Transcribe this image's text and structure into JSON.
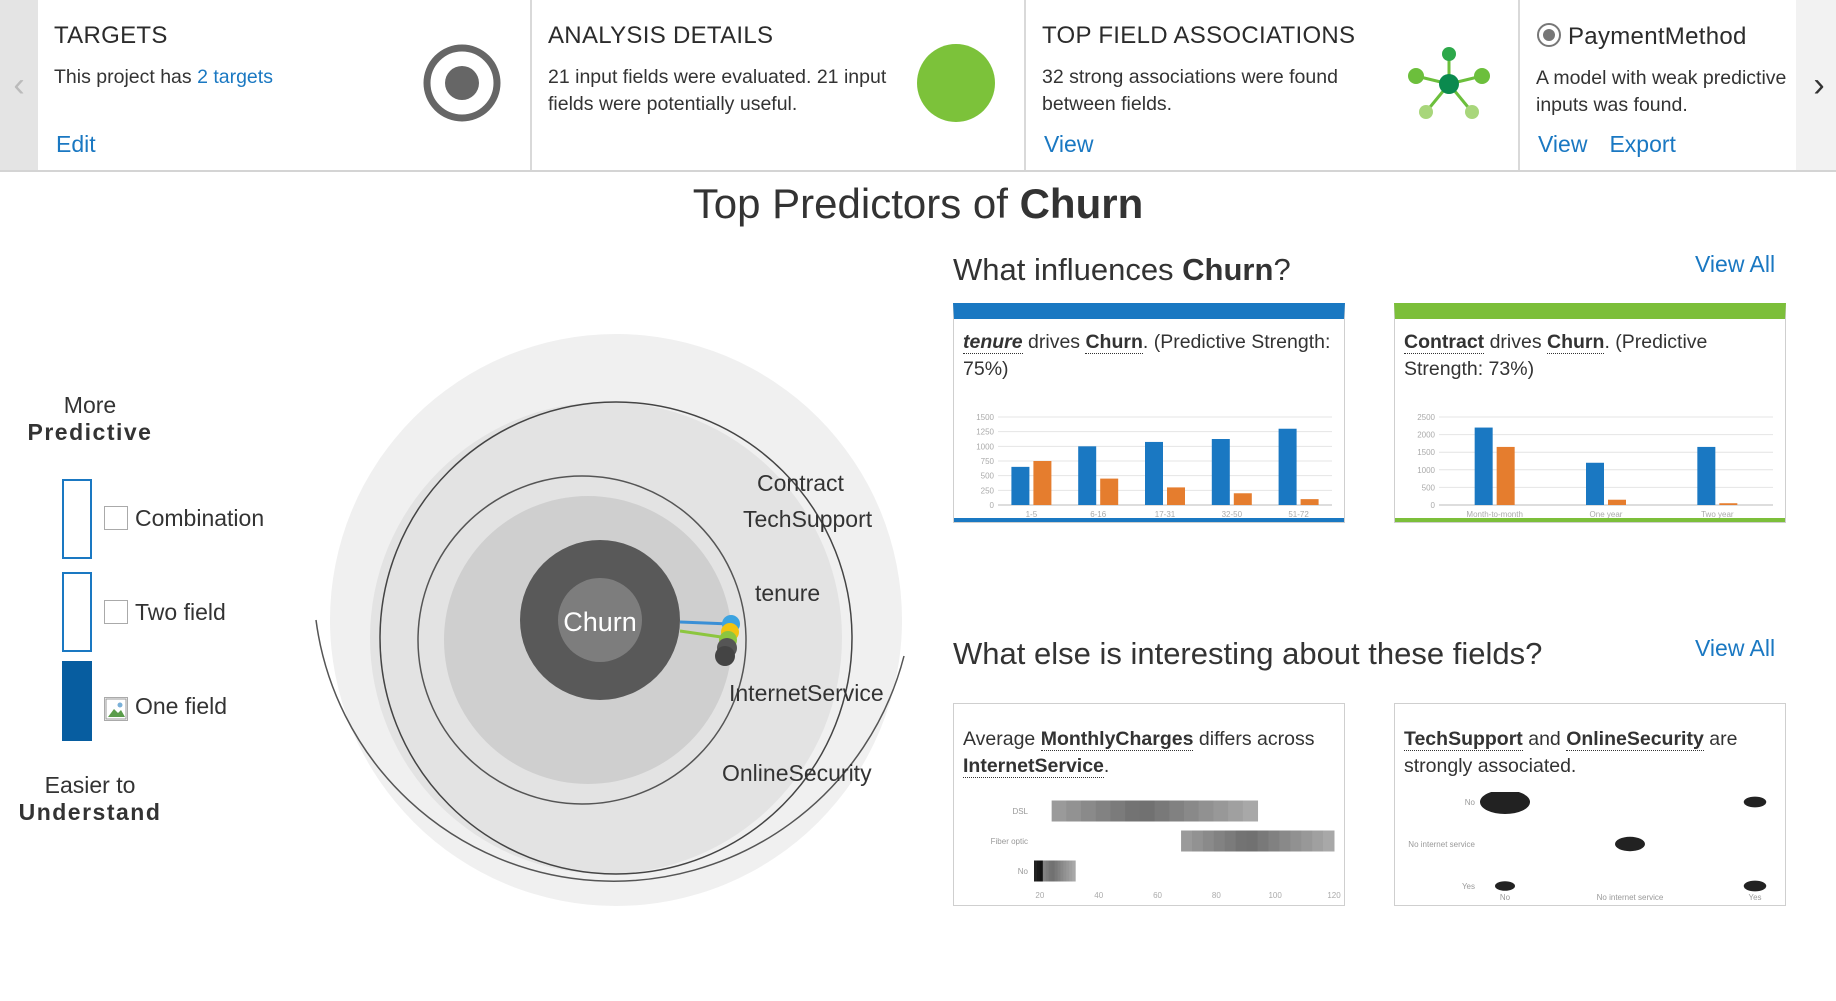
{
  "cards": {
    "targets": {
      "title": "TARGETS",
      "text_prefix": "This project has ",
      "text_link": "2 targets",
      "edit_label": "Edit"
    },
    "analysis": {
      "title": "ANALYSIS DETAILS",
      "text": "21 input fields were evaluated. 21 input fields were potentially useful."
    },
    "associations": {
      "title": "TOP FIELD ASSOCIATIONS",
      "text": "32 strong associations were found between fields.",
      "view_label": "View"
    },
    "payment": {
      "title": "PaymentMethod",
      "text": "A model with weak predictive inputs was found.",
      "view_label": "View",
      "export_label": "Export"
    }
  },
  "main_title": {
    "prefix": "Top Predictors of ",
    "target": "Churn"
  },
  "legend": {
    "top_line1": "More",
    "top_line2": "Predictive",
    "items": [
      {
        "label": "Combination"
      },
      {
        "label": "Two field"
      },
      {
        "label": "One field"
      }
    ],
    "bottom_line1": "Easier to",
    "bottom_line2": "Understand"
  },
  "radial": {
    "center_label": "Churn",
    "labels": [
      "Contract",
      "TechSupport",
      "tenure",
      "InternetService",
      "OnlineSecurity"
    ]
  },
  "influences": {
    "title_prefix": "What influences ",
    "title_target": "Churn",
    "title_suffix": "?",
    "view_all": "View All",
    "panel1": {
      "field": "tenure",
      "mid": " drives ",
      "target": "Churn",
      "rest": ". (Predictive Strength: 75%)",
      "accent": "#1a78c2"
    },
    "panel2": {
      "field": "Contract",
      "mid": " drives ",
      "target": "Churn",
      "rest": ". (Predictive Strength: 73%)",
      "accent": "#7cbf3a"
    }
  },
  "interesting": {
    "title": "What else is interesting about these fields?",
    "view_all": "View All",
    "panel1": {
      "prefix": "Average ",
      "field1": "MonthlyCharges",
      "mid": " differs across ",
      "field2": "InternetService",
      "suffix": "."
    },
    "panel2": {
      "field1": "TechSupport",
      "mid": " and ",
      "field2": "OnlineSecurity",
      "suffix": " are strongly associated."
    }
  },
  "chart_data": [
    {
      "type": "bar",
      "categories": [
        "1-5",
        "6-16",
        "17-31",
        "32-50",
        "51-72"
      ],
      "series": [
        {
          "values": [
            650,
            1000,
            1075,
            1125,
            1300
          ],
          "color": "#1a78c2"
        },
        {
          "values": [
            750,
            450,
            300,
            200,
            100
          ],
          "color": "#e57d2e"
        }
      ],
      "ylim": [
        0,
        1500
      ],
      "yticks": [
        0,
        250,
        500,
        750,
        1000,
        1250,
        1500
      ]
    },
    {
      "type": "bar",
      "categories": [
        "Month-to-month",
        "One year",
        "Two year"
      ],
      "series": [
        {
          "values": [
            2200,
            1200,
            1650
          ],
          "color": "#1a78c2"
        },
        {
          "values": [
            1650,
            150,
            50
          ],
          "color": "#e57d2e"
        }
      ],
      "ylim": [
        0,
        2500
      ],
      "yticks": [
        0,
        500,
        1000,
        1500,
        2000,
        2500
      ]
    },
    {
      "type": "heatmap",
      "rows": [
        "DSL",
        "Fiber optic",
        "No"
      ],
      "xticks": [
        20,
        40,
        60,
        80,
        100,
        120
      ],
      "xlim": [
        18,
        120
      ],
      "bands": [
        {
          "row": 0,
          "from": 24,
          "to": 94
        },
        {
          "row": 1,
          "from": 68,
          "to": 120
        },
        {
          "row": 2,
          "from": 18,
          "to": 32
        }
      ]
    },
    {
      "type": "scatter",
      "x_categories": [
        "No",
        "No internet service",
        "Yes"
      ],
      "y_categories": [
        "No",
        "No internet service",
        "Yes"
      ],
      "points": [
        {
          "x": 0,
          "y": 0,
          "size": 1.0
        },
        {
          "x": 2,
          "y": 0,
          "size": 0.45
        },
        {
          "x": 1,
          "y": 1,
          "size": 0.6
        },
        {
          "x": 0,
          "y": 2,
          "size": 0.4
        },
        {
          "x": 2,
          "y": 2,
          "size": 0.45
        }
      ]
    }
  ]
}
